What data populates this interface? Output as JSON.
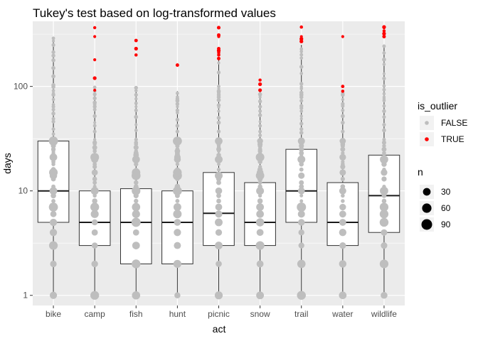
{
  "chart_data": {
    "type": "boxplot",
    "title": "Tukey's test based on log-transformed values",
    "xlabel": "act",
    "ylabel": "days",
    "y_scale": "log10",
    "ylim": [
      0.8,
      420
    ],
    "y_ticks": [
      1,
      10,
      100
    ],
    "y_tick_labels": [
      "1",
      "10",
      "100"
    ],
    "grid": true,
    "categories": [
      "bike",
      "camp",
      "fish",
      "hunt",
      "picnic",
      "snow",
      "trail",
      "water",
      "wildlife"
    ],
    "boxes": [
      {
        "q1": 5,
        "median": 10,
        "q3": 30,
        "lower": 1,
        "upper": 300
      },
      {
        "q1": 3,
        "median": 5,
        "q3": 10,
        "lower": 1,
        "upper": 100
      },
      {
        "q1": 2,
        "median": 5,
        "q3": 10.5,
        "lower": 1,
        "upper": 100
      },
      {
        "q1": 2,
        "median": 5,
        "q3": 10,
        "lower": 1,
        "upper": 90
      },
      {
        "q1": 3,
        "median": 6.1,
        "q3": 15,
        "lower": 1,
        "upper": 180
      },
      {
        "q1": 3,
        "median": 5,
        "q3": 12,
        "lower": 1,
        "upper": 90
      },
      {
        "q1": 5,
        "median": 10,
        "q3": 25,
        "lower": 1,
        "upper": 250
      },
      {
        "q1": 3,
        "median": 5,
        "q3": 12,
        "lower": 1,
        "upper": 90
      },
      {
        "q1": 4,
        "median": 9,
        "q3": 22,
        "lower": 1,
        "upper": 250
      }
    ],
    "outliers": [
      [],
      [
        92,
        120,
        180,
        300,
        365
      ],
      [
        200,
        230,
        275
      ],
      [
        160
      ],
      [
        185,
        200,
        210,
        220,
        230,
        300,
        310,
        365
      ],
      [
        92,
        105,
        115
      ],
      [
        270,
        285,
        300,
        370
      ],
      [
        90,
        100,
        300
      ],
      [
        300,
        320,
        340,
        365,
        370
      ]
    ],
    "legend": {
      "position": "right",
      "color_title": "is_outlier",
      "color_entries": [
        {
          "label": "FALSE",
          "color": "#bebebe"
        },
        {
          "label": "TRUE",
          "color": "#ff0000"
        }
      ],
      "size_title": "n",
      "size_entries": [
        {
          "label": "30",
          "value": 30
        },
        {
          "label": "60",
          "value": 60
        },
        {
          "label": "90",
          "value": 90
        }
      ]
    },
    "colors": {
      "panel": "#ebebeb",
      "grid": "#ffffff",
      "point_false": "#bebebe",
      "point_true": "#ff0000",
      "box_line": "#333333",
      "text": "#000000",
      "tick_text": "#4d4d4d"
    }
  }
}
